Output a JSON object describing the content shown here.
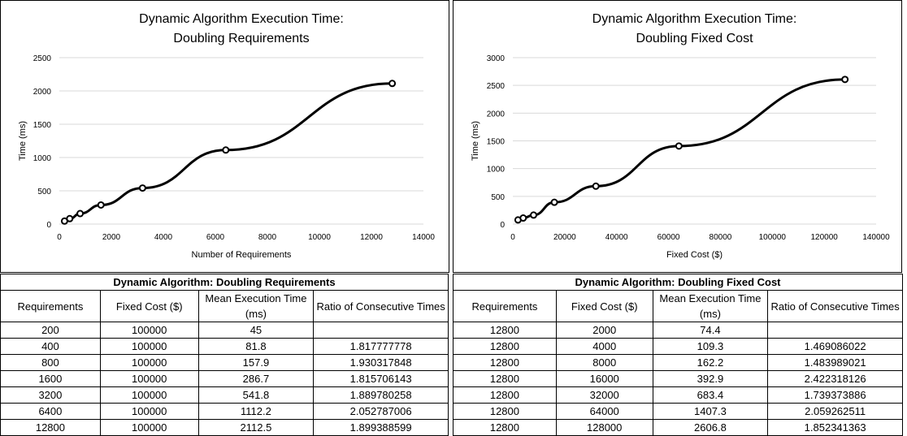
{
  "chart_data": [
    {
      "type": "line",
      "title": [
        "Dynamic Algorithm Execution Time:",
        "Doubling Requirements"
      ],
      "xlabel": "Number  of Requirements",
      "ylabel": "Time (ms)",
      "xlim": [
        0,
        14000
      ],
      "ylim": [
        0,
        2500
      ],
      "xticks": [
        0,
        2000,
        4000,
        6000,
        8000,
        10000,
        12000,
        14000
      ],
      "yticks": [
        0,
        500,
        1000,
        1500,
        2000,
        2500
      ],
      "grid": true,
      "legend": "none",
      "x": [
        200,
        400,
        800,
        1600,
        3200,
        6400,
        12800
      ],
      "y": [
        45,
        81.8,
        157.9,
        286.7,
        541.8,
        1112.2,
        2112.5
      ]
    },
    {
      "type": "line",
      "title": [
        "Dynamic Algorithm Execution Time:",
        "Doubling Fixed Cost"
      ],
      "xlabel": "Fixed Cost ($)",
      "ylabel": "Time (ms)",
      "xlim": [
        0,
        140000
      ],
      "ylim": [
        0,
        3000
      ],
      "xticks": [
        0,
        20000,
        40000,
        60000,
        80000,
        100000,
        120000,
        140000
      ],
      "yticks": [
        0,
        500,
        1000,
        1500,
        2000,
        2500,
        3000
      ],
      "grid": true,
      "legend": "none",
      "x": [
        2000,
        4000,
        8000,
        16000,
        32000,
        64000,
        128000
      ],
      "y": [
        74.4,
        109.3,
        162.2,
        392.9,
        683.4,
        1407.3,
        2606.8
      ]
    }
  ],
  "tables": [
    {
      "caption": "Dynamic Algorithm: Doubling Requirements",
      "headers": [
        "Requirements",
        "Fixed Cost ($)",
        "Mean Execution Time (ms)",
        "Ratio of Consecutive Times"
      ],
      "rows": [
        [
          "200",
          "100000",
          "45",
          ""
        ],
        [
          "400",
          "100000",
          "81.8",
          "1.817777778"
        ],
        [
          "800",
          "100000",
          "157.9",
          "1.930317848"
        ],
        [
          "1600",
          "100000",
          "286.7",
          "1.815706143"
        ],
        [
          "3200",
          "100000",
          "541.8",
          "1.889780258"
        ],
        [
          "6400",
          "100000",
          "1112.2",
          "2.052787006"
        ],
        [
          "12800",
          "100000",
          "2112.5",
          "1.899388599"
        ]
      ]
    },
    {
      "caption": "Dynamic Algorithm: Doubling Fixed Cost",
      "headers": [
        "Requirements",
        "Fixed Cost ($)",
        "Mean Execution Time (ms)",
        "Ratio of Consecutive Times"
      ],
      "rows": [
        [
          "12800",
          "2000",
          "74.4",
          ""
        ],
        [
          "12800",
          "4000",
          "109.3",
          "1.469086022"
        ],
        [
          "12800",
          "8000",
          "162.2",
          "1.483989021"
        ],
        [
          "12800",
          "16000",
          "392.9",
          "2.422318126"
        ],
        [
          "12800",
          "32000",
          "683.4",
          "1.739373886"
        ],
        [
          "12800",
          "64000",
          "1407.3",
          "2.059262511"
        ],
        [
          "12800",
          "128000",
          "2606.8",
          "1.852341363"
        ]
      ]
    }
  ]
}
